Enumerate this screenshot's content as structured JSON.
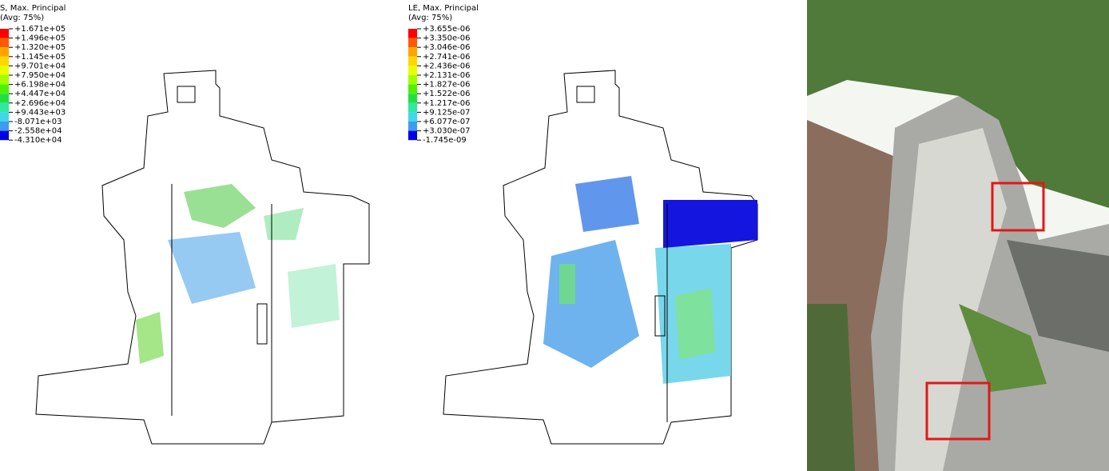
{
  "panels": [
    {
      "legend": {
        "title": "S, Max. Principal",
        "subtitle": "(Avg: 75%)",
        "labels": [
          "+1.671e+05",
          "+1.496e+05",
          "+1.320e+05",
          "+1.145e+05",
          "+9.701e+04",
          "+7.950e+04",
          "+6.198e+04",
          "+4.447e+04",
          "+2.696e+04",
          "+9.443e+03",
          "-8.071e+03",
          "-2.558e+04",
          "-4.310e+04"
        ]
      }
    },
    {
      "legend": {
        "title": "LE, Max. Principal",
        "subtitle": "(Avg: 75%)",
        "labels": [
          "+3.655e-06",
          "+3.350e-06",
          "+3.046e-06",
          "+2.741e-06",
          "+2.436e-06",
          "+2.131e-06",
          "+1.827e-06",
          "+1.522e-06",
          "+1.217e-06",
          "+9.125e-07",
          "+6.077e-07",
          "+3.030e-07",
          "-1.745e-09"
        ]
      }
    }
  ]
}
